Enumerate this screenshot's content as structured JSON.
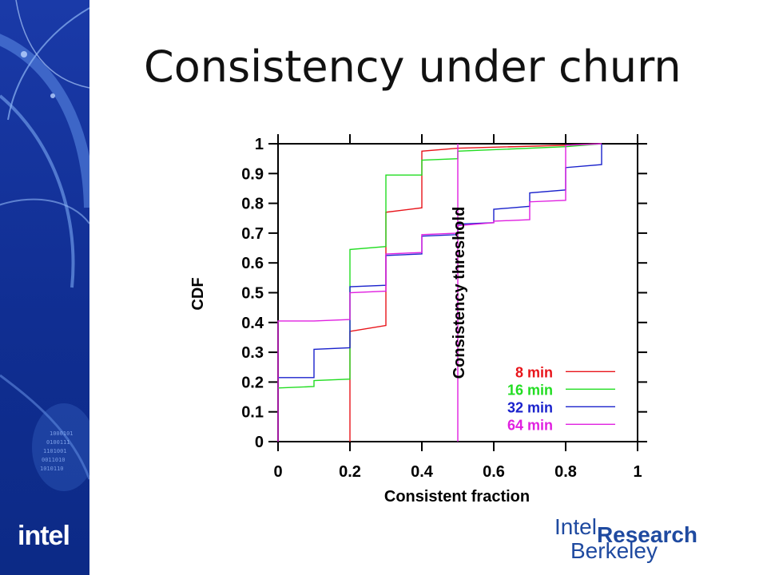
{
  "slide": {
    "title": "Consistency under churn",
    "logo_text": "intel",
    "brand_top": "Intel",
    "brand_main": "Research",
    "brand_bottom": "Berkeley"
  },
  "chart_data": {
    "type": "line",
    "step": true,
    "xlabel": "Consistent fraction",
    "ylabel": "CDF",
    "xlim": [
      0,
      1
    ],
    "ylim": [
      0,
      1
    ],
    "xticks": [
      "0",
      "0.2",
      "0.4",
      "0.6",
      "0.8",
      "1"
    ],
    "xtick_values": [
      0,
      0.2,
      0.4,
      0.6,
      0.8,
      1
    ],
    "yticks": [
      "0",
      "0.1",
      "0.2",
      "0.3",
      "0.4",
      "0.5",
      "0.6",
      "0.7",
      "0.8",
      "0.9",
      "1"
    ],
    "ytick_values": [
      0,
      0.1,
      0.2,
      0.3,
      0.4,
      0.5,
      0.6,
      0.7,
      0.8,
      0.9,
      1
    ],
    "grid": false,
    "legend_position": "bottom-right",
    "annotation": {
      "text": "Consistency threshold",
      "x": 0.5
    },
    "series": [
      {
        "name": "8 min",
        "color": "#e8141a",
        "points": [
          [
            0.2,
            0
          ],
          [
            0.2,
            0.37
          ],
          [
            0.3,
            0.39
          ],
          [
            0.3,
            0.77
          ],
          [
            0.4,
            0.785
          ],
          [
            0.4,
            0.975
          ],
          [
            0.5,
            0.985
          ],
          [
            0.8,
            0.995
          ],
          [
            0.9,
            1
          ]
        ]
      },
      {
        "name": "16 min",
        "color": "#22dd22",
        "points": [
          [
            0,
            0.18
          ],
          [
            0.1,
            0.185
          ],
          [
            0.1,
            0.205
          ],
          [
            0.2,
            0.21
          ],
          [
            0.2,
            0.645
          ],
          [
            0.3,
            0.655
          ],
          [
            0.3,
            0.895
          ],
          [
            0.4,
            0.895
          ],
          [
            0.4,
            0.945
          ],
          [
            0.5,
            0.95
          ],
          [
            0.5,
            0.975
          ],
          [
            0.8,
            0.99
          ],
          [
            0.9,
            1
          ]
        ]
      },
      {
        "name": "32 min",
        "color": "#1a22cc",
        "points": [
          [
            0,
            0.215
          ],
          [
            0.1,
            0.215
          ],
          [
            0.1,
            0.31
          ],
          [
            0.2,
            0.315
          ],
          [
            0.2,
            0.52
          ],
          [
            0.3,
            0.525
          ],
          [
            0.3,
            0.625
          ],
          [
            0.4,
            0.63
          ],
          [
            0.4,
            0.69
          ],
          [
            0.5,
            0.695
          ],
          [
            0.5,
            0.73
          ],
          [
            0.6,
            0.735
          ],
          [
            0.6,
            0.78
          ],
          [
            0.7,
            0.79
          ],
          [
            0.7,
            0.835
          ],
          [
            0.8,
            0.845
          ],
          [
            0.8,
            0.92
          ],
          [
            0.9,
            0.93
          ],
          [
            0.9,
            1
          ]
        ]
      },
      {
        "name": "64 min",
        "color": "#e020e0",
        "points": [
          [
            0,
            0
          ],
          [
            0,
            0.405
          ],
          [
            0.1,
            0.405
          ],
          [
            0.2,
            0.41
          ],
          [
            0.2,
            0.5
          ],
          [
            0.3,
            0.505
          ],
          [
            0.3,
            0.63
          ],
          [
            0.4,
            0.635
          ],
          [
            0.4,
            0.695
          ],
          [
            0.5,
            0.7
          ],
          [
            0.5,
            0.725
          ],
          [
            0.6,
            0.735
          ],
          [
            0.6,
            0.74
          ],
          [
            0.7,
            0.745
          ],
          [
            0.7,
            0.805
          ],
          [
            0.8,
            0.81
          ],
          [
            0.8,
            0.995
          ],
          [
            0.9,
            1
          ]
        ]
      }
    ]
  }
}
